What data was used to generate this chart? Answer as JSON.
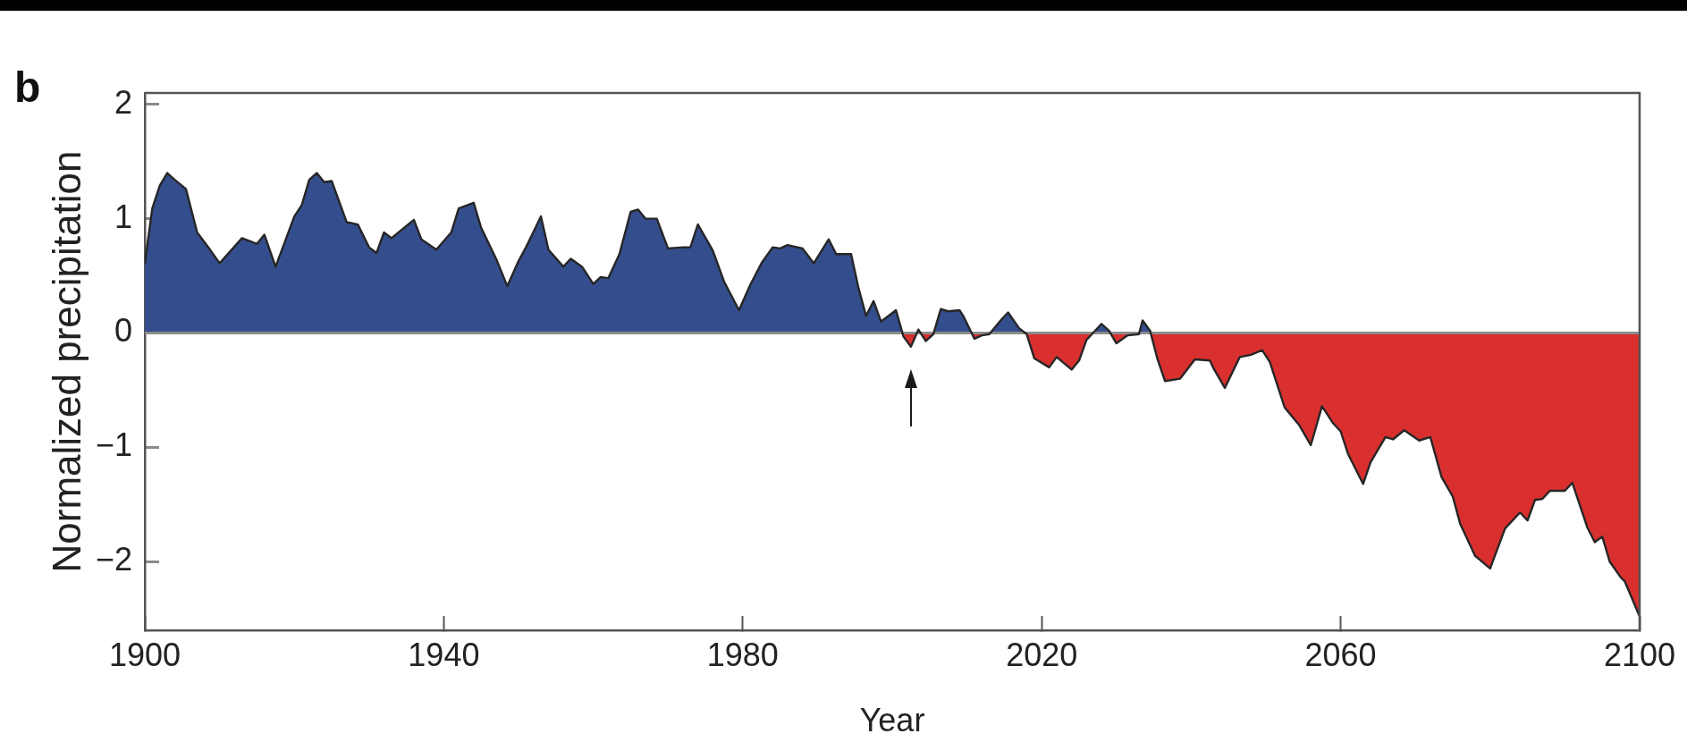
{
  "chart_data": {
    "type": "area",
    "title": "b",
    "xlabel": "Year",
    "ylabel": "Normalized precipitation",
    "xlim": [
      1900,
      2100
    ],
    "xticks": [
      1900,
      1940,
      1980,
      2020,
      2060,
      2100
    ],
    "ylim": [
      -2.6,
      2.1
    ],
    "yticks": [
      {
        "value": -2,
        "label": "−2"
      },
      {
        "value": -1,
        "label": "−1"
      },
      0,
      1,
      2
    ],
    "ref_lines": [
      {
        "axis": "y",
        "value": 0,
        "color": "#8c8c8c"
      }
    ],
    "x": [
      1900,
      1901,
      1902,
      1903,
      1904,
      1905.5,
      1907,
      1908.5,
      1910,
      1913,
      1915,
      1916,
      1917.5,
      1920,
      1921,
      1922,
      1923,
      1924,
      1925,
      1927,
      1928.5,
      1930,
      1931,
      1932,
      1933,
      1936,
      1937,
      1939,
      1941,
      1942,
      1944,
      1945,
      1947,
      1948.5,
      1950,
      1951,
      1953,
      1954,
      1956,
      1957,
      1958.5,
      1960,
      1961,
      1962,
      1963.5,
      1965,
      1966,
      1967,
      1968.5,
      1970,
      1972,
      1973,
      1974,
      1976,
      1977.5,
      1979.5,
      1981,
      1982.5,
      1984,
      1985,
      1986,
      1988,
      1989.5,
      1991.5,
      1992.5,
      1994.5,
      1995.5,
      1996.5,
      1997.5,
      1998.5,
      2000.5,
      2001.5,
      2002.5,
      2003.5,
      2004.5,
      2005.5,
      2006.5,
      2007.5,
      2009,
      2009.5,
      2011,
      2012,
      2013,
      2014.5,
      2015.5,
      2017,
      2018,
      2019,
      2021,
      2022,
      2024,
      2025,
      2026,
      2028,
      2029,
      2030,
      2031.5,
      2033,
      2033.5,
      2034.5,
      2035.5,
      2036.5,
      2038.5,
      2040.5,
      2042.5,
      2043,
      2044.5,
      2046.5,
      2048,
      2049.5,
      2050.5,
      2052.5,
      2054.5,
      2056,
      2056.5,
      2057.5,
      2059,
      2060,
      2061,
      2063,
      2064,
      2066,
      2067,
      2068.5,
      2070.5,
      2072,
      2073.5,
      2075,
      2076,
      2078,
      2080,
      2082,
      2084,
      2085,
      2086,
      2087,
      2088,
      2090,
      2091,
      2093,
      2094,
      2095,
      2096,
      2097.5,
      2098,
      2100
    ],
    "series": [
      {
        "color": "#262626",
        "values": [
          0.61,
          1.09,
          1.29,
          1.4,
          1.34,
          1.26,
          0.88,
          0.75,
          0.61,
          0.83,
          0.78,
          0.86,
          0.58,
          1.02,
          1.12,
          1.34,
          1.4,
          1.32,
          1.33,
          0.97,
          0.95,
          0.75,
          0.7,
          0.88,
          0.83,
          0.99,
          0.82,
          0.73,
          0.88,
          1.09,
          1.14,
          0.92,
          0.65,
          0.41,
          0.63,
          0.75,
          1.02,
          0.73,
          0.58,
          0.65,
          0.58,
          0.43,
          0.49,
          0.48,
          0.69,
          1.06,
          1.08,
          1.0,
          1.0,
          0.74,
          0.75,
          0.75,
          0.95,
          0.72,
          0.45,
          0.2,
          0.42,
          0.61,
          0.75,
          0.74,
          0.77,
          0.74,
          0.61,
          0.82,
          0.69,
          0.69,
          0.39,
          0.15,
          0.28,
          0.1,
          0.2,
          -0.03,
          -0.12,
          0.03,
          -0.07,
          -0.01,
          0.21,
          0.19,
          0.2,
          0.15,
          -0.05,
          -0.02,
          -0.01,
          0.11,
          0.18,
          0.04,
          -0.01,
          -0.22,
          -0.3,
          -0.21,
          -0.32,
          -0.24,
          -0.06,
          0.08,
          0.02,
          -0.09,
          -0.02,
          -0.01,
          0.11,
          0.02,
          -0.23,
          -0.42,
          -0.4,
          -0.23,
          -0.24,
          -0.31,
          -0.48,
          -0.21,
          -0.19,
          -0.15,
          -0.25,
          -0.65,
          -0.81,
          -0.98,
          -0.87,
          -0.64,
          -0.79,
          -0.86,
          -1.06,
          -1.32,
          -1.13,
          -0.91,
          -0.93,
          -0.85,
          -0.94,
          -0.91,
          -1.26,
          -1.43,
          -1.67,
          -1.95,
          -2.06,
          -1.71,
          -1.57,
          -1.64,
          -1.46,
          -1.45,
          -1.38,
          -1.38,
          -1.31,
          -1.7,
          -1.83,
          -1.78,
          -2.0,
          -2.14,
          -2.17,
          -2.48
        ],
        "colors": [
          "#344e8d",
          "#344e8d",
          "#344e8d",
          "#344e8d",
          "#344e8d",
          "#344e8d",
          "#344e8d",
          "#344e8d",
          "#344e8d",
          "#344e8d",
          "#344e8d",
          "#344e8d",
          "#344e8d",
          "#344e8d",
          "#344e8d",
          "#344e8d",
          "#344e8d",
          "#344e8d",
          "#344e8d",
          "#344e8d",
          "#344e8d",
          "#344e8d",
          "#344e8d",
          "#344e8d",
          "#344e8d",
          "#344e8d",
          "#344e8d",
          "#344e8d",
          "#344e8d",
          "#344e8d",
          "#344e8d",
          "#344e8d",
          "#344e8d",
          "#344e8d",
          "#344e8d",
          "#344e8d",
          "#344e8d",
          "#344e8d",
          "#344e8d",
          "#344e8d",
          "#344e8d",
          "#344e8d",
          "#344e8d",
          "#344e8d",
          "#344e8d",
          "#344e8d",
          "#344e8d",
          "#344e8d",
          "#344e8d",
          "#344e8d",
          "#344e8d",
          "#344e8d",
          "#344e8d",
          "#344e8d",
          "#344e8d",
          "#344e8d",
          "#344e8d",
          "#344e8d",
          "#344e8d",
          "#344e8d",
          "#344e8d",
          "#344e8d",
          "#344e8d",
          "#344e8d",
          "#344e8d",
          "#344e8d",
          "#344e8d",
          "#344e8d",
          "#344e8d",
          "#344e8d",
          "#344e8d",
          "#d9302f",
          "#d9302f",
          "#344e8d",
          "#d9302f",
          "#d9302f",
          "#344e8d",
          "#344e8d",
          "#344e8d",
          "#344e8d",
          "#d9302f",
          "#d9302f",
          "#d9302f",
          "#344e8d",
          "#344e8d",
          "#344e8d",
          "#d9302f",
          "#d9302f",
          "#d9302f",
          "#d9302f",
          "#d9302f",
          "#d9302f",
          "#d9302f",
          "#344e8d",
          "#344e8d",
          "#d9302f",
          "#d9302f",
          "#d9302f",
          "#344e8d",
          "#344e8d",
          "#d9302f",
          "#d9302f",
          "#d9302f",
          "#d9302f",
          "#d9302f",
          "#d9302f",
          "#d9302f",
          "#d9302f",
          "#d9302f",
          "#d9302f",
          "#d9302f",
          "#d9302f",
          "#d9302f",
          "#d9302f",
          "#d9302f",
          "#d9302f",
          "#d9302f",
          "#d9302f",
          "#d9302f",
          "#d9302f",
          "#d9302f",
          "#d9302f",
          "#d9302f",
          "#d9302f",
          "#d9302f",
          "#d9302f",
          "#d9302f",
          "#d9302f",
          "#d9302f",
          "#d9302f",
          "#d9302f",
          "#d9302f",
          "#d9302f",
          "#d9302f",
          "#d9302f",
          "#d9302f",
          "#d9302f",
          "#d9302f",
          "#d9302f",
          "#d9302f",
          "#d9302f",
          "#d9302f",
          "#d9302f",
          "#d9302f",
          "#d9302f",
          "#d9302f"
        ]
      }
    ]
  }
}
